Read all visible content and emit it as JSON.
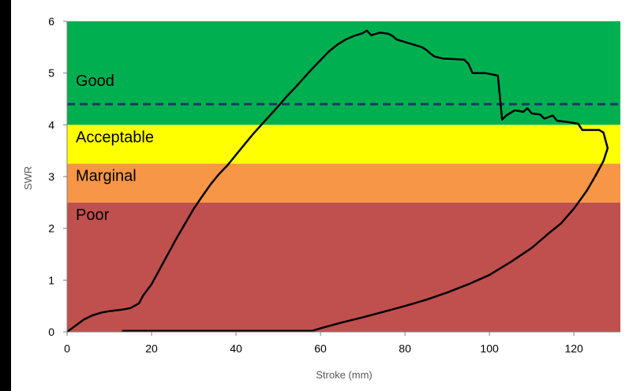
{
  "chart_data": {
    "type": "line",
    "xlabel": "Stroke (mm)",
    "ylabel": "SWR",
    "xlim": [
      0,
      131
    ],
    "ylim": [
      0,
      6
    ],
    "x_ticks": [
      "0",
      "20",
      "40",
      "60",
      "80",
      "100",
      "120"
    ],
    "y_ticks": [
      "0",
      "1",
      "2",
      "3",
      "4",
      "5",
      "6"
    ],
    "grid": false,
    "legend": "none",
    "zones": [
      {
        "label": "Poor",
        "y_from": 0,
        "y_to": 2.5,
        "color": "#c0504d"
      },
      {
        "label": "Marginal",
        "y_from": 2.5,
        "y_to": 3.25,
        "color": "#f79646"
      },
      {
        "label": "Acceptable",
        "y_from": 3.25,
        "y_to": 4.0,
        "color": "#ffff00"
      },
      {
        "label": "Good",
        "y_from": 4.0,
        "y_to": 6.0,
        "color": "#00b050"
      }
    ],
    "reference_line": {
      "y": 4.4,
      "style": "dashed",
      "color": "#1f3864"
    },
    "series": [
      {
        "color": "#000000",
        "points": [
          [
            0,
            0
          ],
          [
            2,
            0.12
          ],
          [
            4,
            0.24
          ],
          [
            6,
            0.32
          ],
          [
            8,
            0.37
          ],
          [
            10,
            0.4
          ],
          [
            13,
            0.43
          ],
          [
            15,
            0.46
          ],
          [
            17,
            0.55
          ],
          [
            18,
            0.7
          ],
          [
            20,
            0.92
          ],
          [
            22,
            1.22
          ],
          [
            24,
            1.52
          ],
          [
            26,
            1.82
          ],
          [
            28,
            2.1
          ],
          [
            30,
            2.38
          ],
          [
            32,
            2.62
          ],
          [
            34,
            2.85
          ],
          [
            36,
            3.05
          ],
          [
            38,
            3.22
          ],
          [
            40,
            3.42
          ],
          [
            42,
            3.62
          ],
          [
            44,
            3.82
          ],
          [
            46,
            4.0
          ],
          [
            48,
            4.18
          ],
          [
            50,
            4.36
          ],
          [
            52,
            4.55
          ],
          [
            54,
            4.72
          ],
          [
            56,
            4.9
          ],
          [
            58,
            5.08
          ],
          [
            60,
            5.25
          ],
          [
            62,
            5.42
          ],
          [
            64,
            5.55
          ],
          [
            66,
            5.65
          ],
          [
            68,
            5.72
          ],
          [
            70,
            5.77
          ],
          [
            71,
            5.82
          ],
          [
            72,
            5.73
          ],
          [
            74,
            5.78
          ],
          [
            76,
            5.76
          ],
          [
            77,
            5.72
          ],
          [
            78,
            5.65
          ],
          [
            80,
            5.6
          ],
          [
            82,
            5.55
          ],
          [
            84,
            5.5
          ],
          [
            85,
            5.45
          ],
          [
            86,
            5.38
          ],
          [
            87,
            5.32
          ],
          [
            89,
            5.28
          ],
          [
            94,
            5.26
          ],
          [
            95,
            5.18
          ],
          [
            96,
            5.0
          ],
          [
            99,
            5.0
          ],
          [
            102,
            4.95
          ],
          [
            103,
            4.1
          ],
          [
            104,
            4.18
          ],
          [
            106,
            4.28
          ],
          [
            108,
            4.25
          ],
          [
            109,
            4.32
          ],
          [
            110,
            4.22
          ],
          [
            112,
            4.2
          ],
          [
            113,
            4.12
          ],
          [
            115,
            4.18
          ],
          [
            116,
            4.08
          ],
          [
            119,
            4.05
          ],
          [
            121,
            4.02
          ],
          [
            122,
            3.9
          ],
          [
            124,
            3.9
          ],
          [
            126,
            3.9
          ],
          [
            127,
            3.85
          ],
          [
            128,
            3.55
          ],
          [
            127,
            3.3
          ],
          [
            125,
            3.0
          ],
          [
            123,
            2.72
          ],
          [
            120,
            2.38
          ],
          [
            117,
            2.1
          ],
          [
            114,
            1.9
          ],
          [
            110,
            1.62
          ],
          [
            105,
            1.35
          ],
          [
            100,
            1.1
          ],
          [
            95,
            0.92
          ],
          [
            90,
            0.76
          ],
          [
            85,
            0.62
          ],
          [
            80,
            0.5
          ],
          [
            75,
            0.39
          ],
          [
            70,
            0.28
          ],
          [
            65,
            0.18
          ],
          [
            60,
            0.07
          ],
          [
            58,
            0.02
          ],
          [
            50,
            0.02
          ],
          [
            40,
            0.02
          ],
          [
            30,
            0.02
          ],
          [
            20,
            0.02
          ],
          [
            13,
            0.02
          ]
        ]
      }
    ]
  }
}
